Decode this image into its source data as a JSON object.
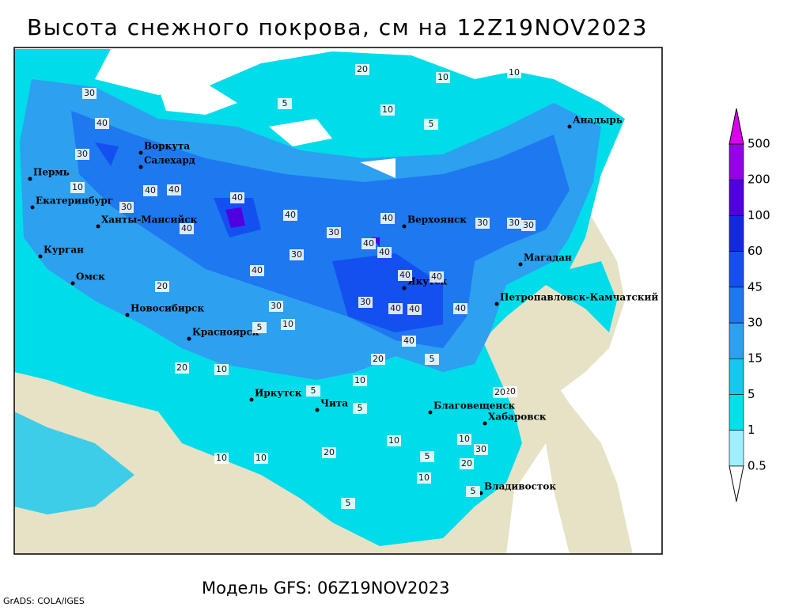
{
  "header": {
    "title": "Высота снежного покрова, см на 12Z19NOV2023"
  },
  "footer": {
    "model": "Модель GFS: 06Z19NOV2023",
    "credit": "GrADS: COLA/IGES"
  },
  "legend": {
    "levels": [
      0.5,
      1,
      5,
      15,
      30,
      45,
      60,
      100,
      200,
      500
    ],
    "colors": [
      "#ffffff",
      "#9ef0ff",
      "#00e0e8",
      "#14c8f0",
      "#2da0f0",
      "#1e78f0",
      "#1450f0",
      "#1428e0",
      "#5000e0",
      "#9600e6",
      "#dc00f0"
    ]
  },
  "cities": [
    "Анадырь",
    "Воркута",
    "Салехард",
    "Пермь",
    "Екатеринбург",
    "Ханты-Мансийск",
    "Курган",
    "Омск",
    "Верхоянск",
    "Магадан",
    "Петропавловск-Камчатский",
    "Якутск",
    "Новосибирск",
    "Красноярск",
    "Иркутск",
    "Чита",
    "Благовещенск",
    "Хабаровск",
    "Владивосток"
  ],
  "contour_labels": [
    "20",
    "10",
    "10",
    "10",
    "5",
    "5",
    "30",
    "40",
    "30",
    "10",
    "40",
    "40",
    "40",
    "30",
    "40",
    "40",
    "40",
    "30",
    "30",
    "30",
    "30",
    "40",
    "40",
    "40",
    "30",
    "40",
    "40",
    "40",
    "30",
    "40",
    "40",
    "40",
    "20",
    "20",
    "10",
    "10",
    "5",
    "5",
    "5",
    "20",
    "10",
    "10",
    "5",
    "10",
    "5",
    "10",
    "5",
    "20",
    "20",
    "20",
    "30",
    "10",
    "30",
    "20",
    "5",
    "10"
  ]
}
